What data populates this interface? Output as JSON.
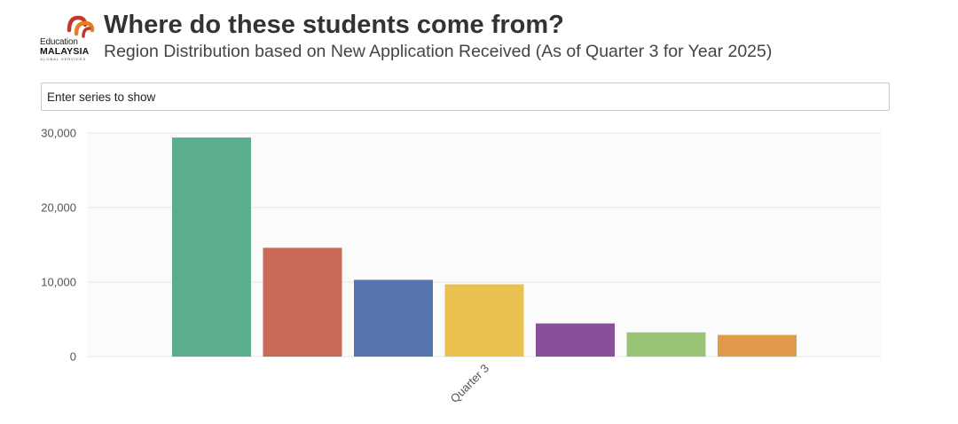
{
  "header": {
    "title": "Where do these students come from?",
    "subtitle": "Region Distribution based on New Application Received (As of Quarter 3 for Year 2025)"
  },
  "logo": {
    "line1": "Education",
    "line2": "MALAYSIA",
    "line3": "GLOBAL SERVICES",
    "colors": [
      "#c0392b",
      "#e67e22"
    ]
  },
  "series_filter": {
    "placeholder": "Enter series to show"
  },
  "chart_data": {
    "type": "bar",
    "categories": [
      "Quarter 3"
    ],
    "series": [
      {
        "values": [
          29400
        ],
        "color": "#5aae8b"
      },
      {
        "values": [
          14600
        ],
        "color": "#c96a57"
      },
      {
        "values": [
          10300
        ],
        "color": "#5674ad"
      },
      {
        "values": [
          9700
        ],
        "color": "#eac150"
      },
      {
        "values": [
          4450
        ],
        "color": "#8a4f99"
      },
      {
        "values": [
          3250
        ],
        "color": "#99c475"
      },
      {
        "values": [
          2900
        ],
        "color": "#e19a4a"
      }
    ],
    "ylim": [
      0,
      30000
    ],
    "yticks": [
      0,
      10000,
      20000,
      30000
    ],
    "ytick_labels": [
      "0",
      "10,000",
      "20,000",
      "30,000"
    ],
    "xtick_labels": [
      "Quarter 3"
    ],
    "grid": true,
    "plot_background": "#fbfbfb",
    "grid_color": "#e6e6e6"
  }
}
